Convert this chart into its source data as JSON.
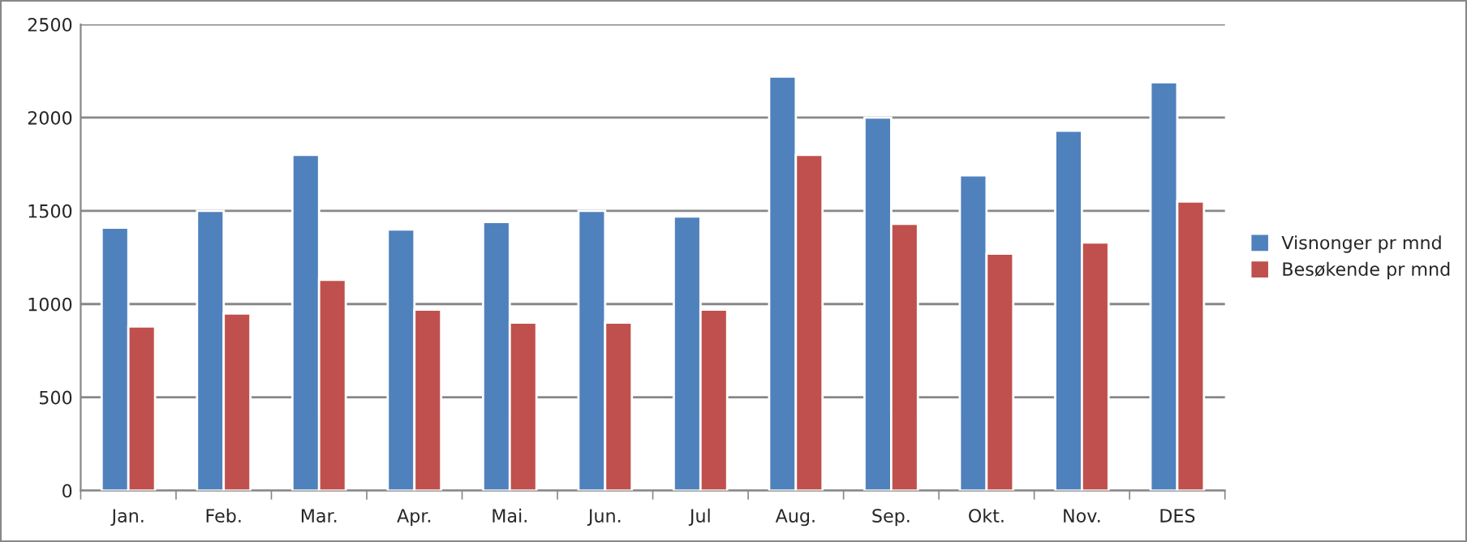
{
  "chart_data": {
    "type": "bar",
    "categories": [
      "Jan.",
      "Feb.",
      "Mar.",
      "Apr.",
      "Mai.",
      "Jun.",
      "Jul",
      "Aug.",
      "Sep.",
      "Okt.",
      "Nov.",
      "DES"
    ],
    "series": [
      {
        "name": "Visnonger pr mnd",
        "color": "#4f81bd",
        "values": [
          1410,
          1500,
          1800,
          1400,
          1440,
          1500,
          1470,
          2220,
          2000,
          1690,
          1930,
          2190
        ]
      },
      {
        "name": "Besøkende pr mnd",
        "color": "#c0504d",
        "values": [
          880,
          950,
          1130,
          970,
          900,
          900,
          970,
          1800,
          1430,
          1270,
          1330,
          1550
        ]
      }
    ],
    "ylim": [
      0,
      2500
    ],
    "yticks": [
      0,
      500,
      1000,
      1500,
      2000,
      2500
    ],
    "grid": "y",
    "legend": "right"
  }
}
